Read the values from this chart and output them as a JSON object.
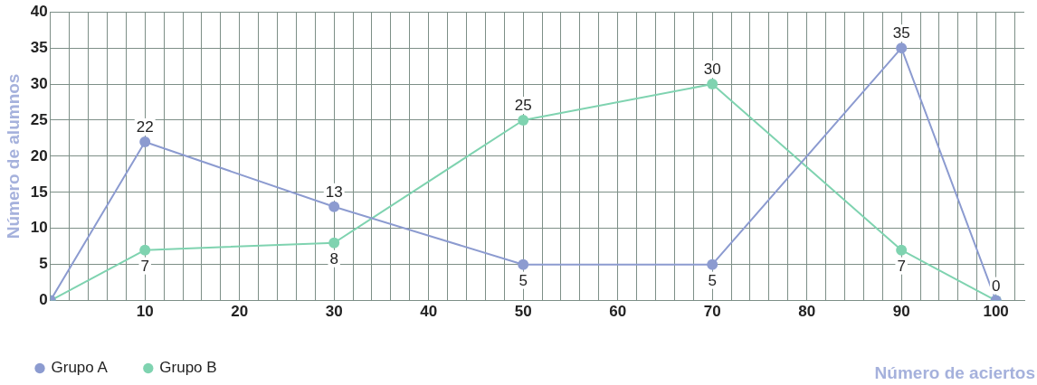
{
  "chart_data": {
    "type": "line",
    "xlabel": "Número de aciertos",
    "ylabel": "Número de alumnos",
    "x": [
      0,
      10,
      30,
      50,
      70,
      90,
      100
    ],
    "series": [
      {
        "name": "Grupo A",
        "color": "#8c9bd0",
        "values": [
          0,
          22,
          13,
          5,
          5,
          35,
          0
        ],
        "value_labels": [
          null,
          "22",
          "13",
          "5",
          "5",
          "35",
          "0"
        ]
      },
      {
        "name": "Grupo B",
        "color": "#7fd3b0",
        "values": [
          0,
          7,
          8,
          25,
          30,
          7,
          0
        ],
        "value_labels": [
          null,
          "7",
          "8",
          "25",
          "30",
          "7",
          null
        ]
      }
    ],
    "xlim": [
      0,
      103
    ],
    "xticks": [
      {
        "value": 0,
        "label": null
      },
      {
        "value": 2,
        "label": null
      },
      {
        "value": 4,
        "label": null
      },
      {
        "value": 6,
        "label": null
      },
      {
        "value": 8,
        "label": null
      },
      10,
      {
        "value": 12,
        "label": null
      },
      {
        "value": 14,
        "label": null
      },
      {
        "value": 16,
        "label": null
      },
      {
        "value": 18,
        "label": null
      },
      20,
      {
        "value": 22,
        "label": null
      },
      {
        "value": 24,
        "label": null
      },
      {
        "value": 26,
        "label": null
      },
      {
        "value": 28,
        "label": null
      },
      30,
      {
        "value": 32,
        "label": null
      },
      {
        "value": 34,
        "label": null
      },
      {
        "value": 36,
        "label": null
      },
      {
        "value": 38,
        "label": null
      },
      40,
      {
        "value": 42,
        "label": null
      },
      {
        "value": 44,
        "label": null
      },
      {
        "value": 46,
        "label": null
      },
      {
        "value": 48,
        "label": null
      },
      50,
      {
        "value": 52,
        "label": null
      },
      {
        "value": 54,
        "label": null
      },
      {
        "value": 56,
        "label": null
      },
      {
        "value": 58,
        "label": null
      },
      60,
      {
        "value": 62,
        "label": null
      },
      {
        "value": 64,
        "label": null
      },
      {
        "value": 66,
        "label": null
      },
      {
        "value": 68,
        "label": null
      },
      70,
      {
        "value": 72,
        "label": null
      },
      {
        "value": 74,
        "label": null
      },
      {
        "value": 76,
        "label": null
      },
      {
        "value": 78,
        "label": null
      },
      80,
      {
        "value": 82,
        "label": null
      },
      {
        "value": 84,
        "label": null
      },
      {
        "value": 86,
        "label": null
      },
      {
        "value": 88,
        "label": null
      },
      90,
      {
        "value": 92,
        "label": null
      },
      {
        "value": 94,
        "label": null
      },
      {
        "value": 96,
        "label": null
      },
      {
        "value": 98,
        "label": null
      },
      100,
      {
        "value": 102,
        "label": null
      }
    ],
    "ylim": [
      0,
      40
    ],
    "yticks": [
      0,
      5,
      10,
      15,
      20,
      25,
      30,
      35,
      40
    ],
    "grid": true,
    "legend": "bottom left",
    "marker": "circle",
    "line_style": "solid"
  }
}
